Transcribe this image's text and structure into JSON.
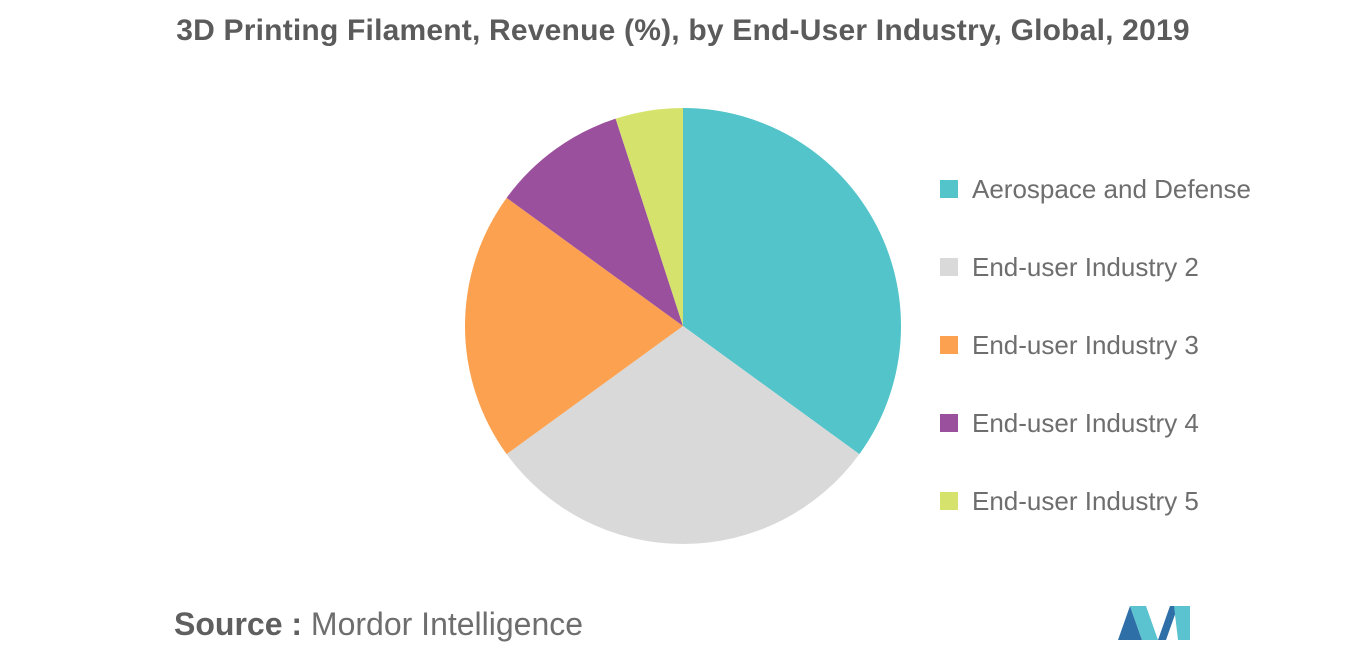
{
  "chart_data": {
    "type": "pie",
    "title": "3D Printing Filament, Revenue (%), by End-User Industry, Global, 2019",
    "categories": [
      "Aerospace and Defense",
      "End-user Industry 2",
      "End-user Industry 3",
      "End-user Industry 4",
      "End-user Industry 5"
    ],
    "values": [
      35,
      30,
      20,
      10,
      5
    ],
    "colors": [
      "#52c4ca",
      "#d9d9d9",
      "#fba14f",
      "#9b509e",
      "#d5e36c"
    ],
    "legend": "right",
    "start_angle": "top, clockwise"
  },
  "source": {
    "label": "Source :",
    "value": "Mordor Intelligence"
  },
  "logo": {
    "icon": "mordor-intelligence-logo",
    "colors": [
      "#2e6fa7",
      "#5bc2d0"
    ]
  }
}
